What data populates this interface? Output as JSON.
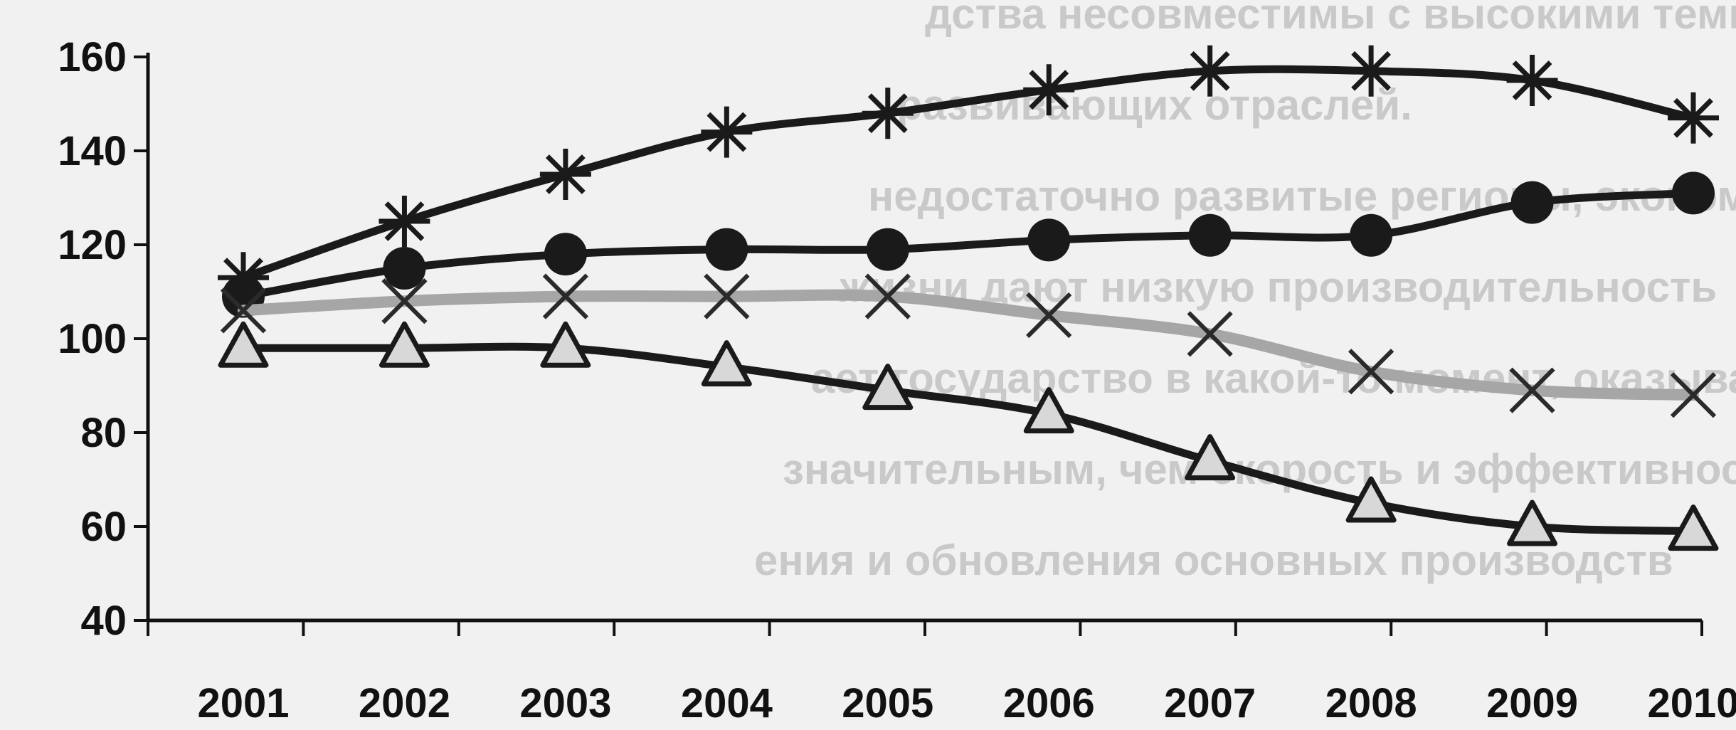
{
  "chart_data": {
    "type": "line",
    "x": [
      2001,
      2002,
      2003,
      2004,
      2005,
      2006,
      2007,
      2008,
      2009,
      2010
    ],
    "ylim": [
      40,
      160
    ],
    "yticks": [
      40,
      60,
      80,
      100,
      120,
      140,
      160
    ],
    "grid": false,
    "series": [
      {
        "marker": "asterisk",
        "color": "#1a1a1a",
        "values": [
          113,
          125,
          135,
          144,
          148,
          153,
          157,
          157,
          155,
          147
        ]
      },
      {
        "marker": "circle",
        "color": "#1a1a1a",
        "values": [
          109,
          115,
          118,
          119,
          119,
          121,
          122,
          122,
          129,
          131
        ]
      },
      {
        "marker": "x",
        "color": "#a6a6a6",
        "values": [
          106,
          108,
          109,
          109,
          109,
          105,
          101,
          93,
          89,
          88
        ]
      },
      {
        "marker": "triangle",
        "color": "#1a1a1a",
        "values": [
          98,
          98,
          98,
          94,
          89,
          84,
          74,
          65,
          60,
          59
        ]
      }
    ]
  },
  "background_text": [
    "дства несовместимы с высокими темпами роста",
    "развивающих отраслей.",
    "недостаточно развитые регионы, экономически",
    "жизни дают низкую производительность",
    "ает государство в какой-то момент, оказывается",
    "значительным, чем скорость и эффективность",
    "ения и обновления основных производств"
  ]
}
